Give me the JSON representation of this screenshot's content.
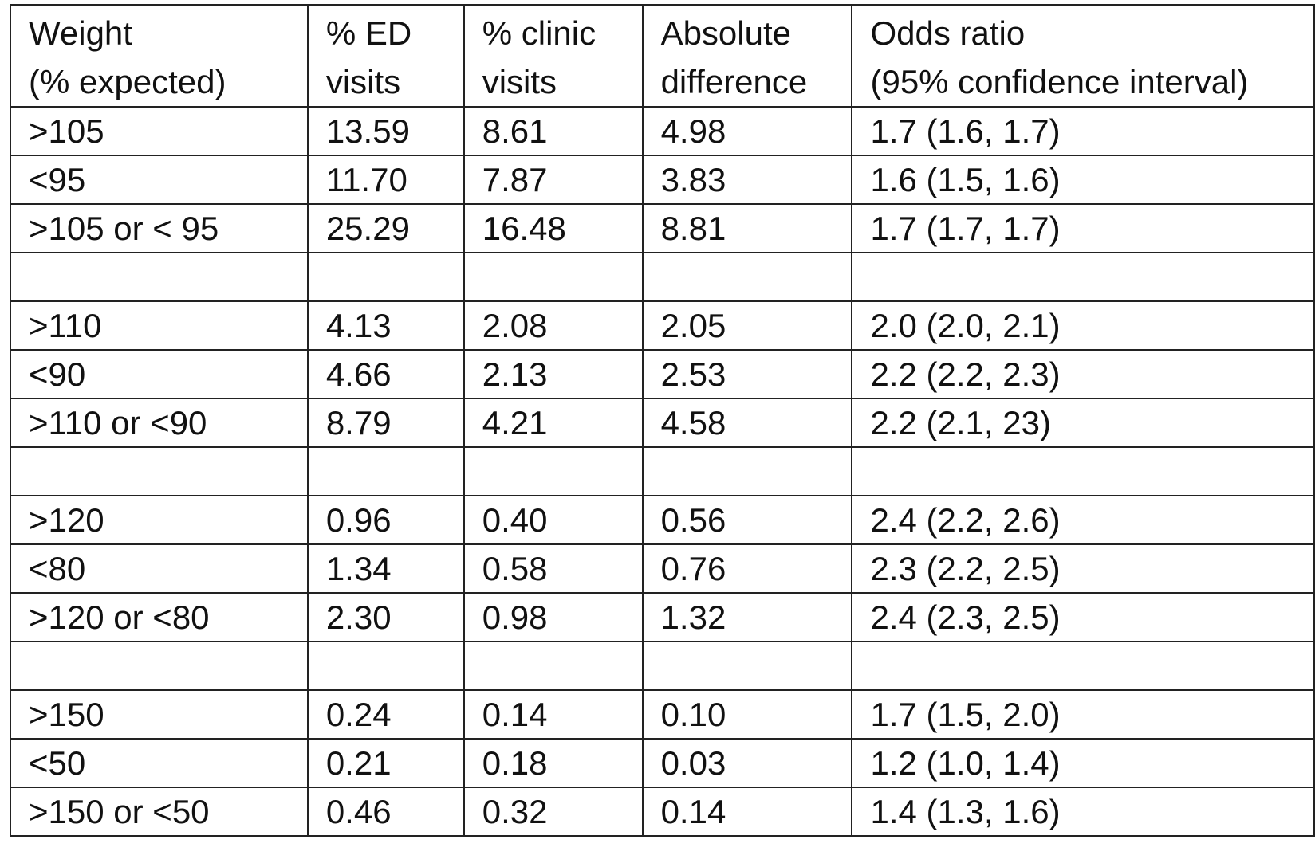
{
  "table": {
    "headers": [
      [
        "Weight",
        "(% expected)"
      ],
      [
        "% ED",
        "visits"
      ],
      [
        "% clinic",
        "visits"
      ],
      [
        "Absolute",
        "difference"
      ],
      [
        "Odds ratio",
        "(95% confidence interval)"
      ]
    ],
    "rows": [
      [
        ">105",
        "13.59",
        "8.61",
        "4.98",
        "1.7 (1.6, 1.7)"
      ],
      [
        "<95",
        "11.70",
        "7.87",
        "3.83",
        "1.6 (1.5, 1.6)"
      ],
      [
        ">105 or < 95",
        "25.29",
        "16.48",
        "8.81",
        "1.7 (1.7, 1.7)"
      ],
      [
        "",
        "",
        "",
        "",
        ""
      ],
      [
        ">110",
        "4.13",
        "2.08",
        "2.05",
        "2.0 (2.0, 2.1)"
      ],
      [
        "<90",
        "4.66",
        "2.13",
        "2.53",
        "2.2 (2.2, 2.3)"
      ],
      [
        ">110 or <90",
        "8.79",
        "4.21",
        "4.58",
        "2.2 (2.1, 23)"
      ],
      [
        "",
        "",
        "",
        "",
        ""
      ],
      [
        ">120",
        "0.96",
        "0.40",
        "0.56",
        "2.4 (2.2, 2.6)"
      ],
      [
        "<80",
        "1.34",
        "0.58",
        "0.76",
        "2.3 (2.2, 2.5)"
      ],
      [
        ">120 or <80",
        "2.30",
        "0.98",
        "1.32",
        "2.4 (2.3, 2.5)"
      ],
      [
        "",
        "",
        "",
        "",
        ""
      ],
      [
        ">150",
        "0.24",
        "0.14",
        "0.10",
        "1.7 (1.5, 2.0)"
      ],
      [
        "<50",
        "0.21",
        "0.18",
        "0.03",
        "1.2 (1.0, 1.4)"
      ],
      [
        ">150 or <50",
        "0.46",
        "0.32",
        "0.14",
        "1.4 (1.3, 1.6)"
      ]
    ]
  }
}
